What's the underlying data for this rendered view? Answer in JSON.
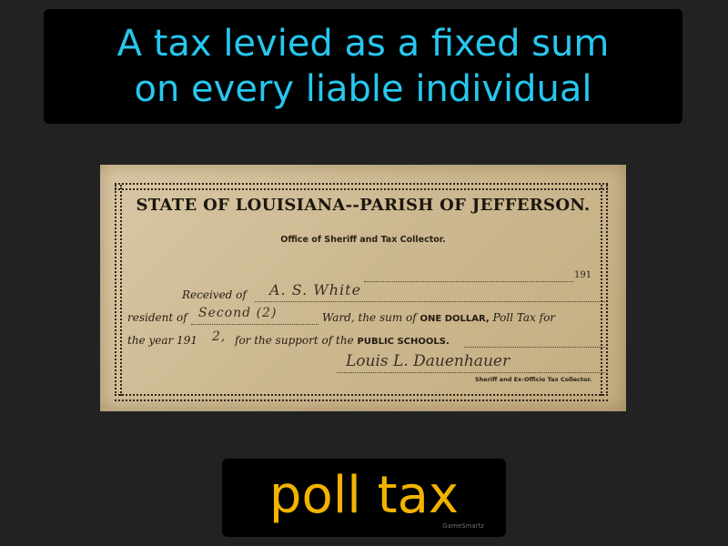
{
  "definition": {
    "line1": "A tax levied as a fixed sum",
    "line2": "on every liable individual"
  },
  "term": "poll tax",
  "brand": "GameSmartz",
  "document": {
    "title": "STATE OF LOUISIANA--PARISH OF JEFFERSON.",
    "subtitle": "Office of Sheriff and Tax Collector.",
    "year_suffix": "191",
    "received_label": "Received of",
    "received_name": "A. S. White",
    "resident_label": "resident of",
    "ward_value": "Second (2)",
    "ward_text_1": "Ward, the sum of",
    "amount_caps": "ONE DOLLAR,",
    "poll_tax_label": "Poll Tax for",
    "year_label": "the year 191",
    "year_value": "2,",
    "support_label": "for the support of the",
    "schools_caps": "PUBLIC SCHOOLS.",
    "signature": "Louis L. Dauenhauer",
    "collector_title": "Sheriff and Ex-Officio Tax Collector."
  },
  "colors": {
    "background": "#222222",
    "definition_text": "#27c7ee",
    "term_text": "#f2b300",
    "box": "#000000"
  }
}
